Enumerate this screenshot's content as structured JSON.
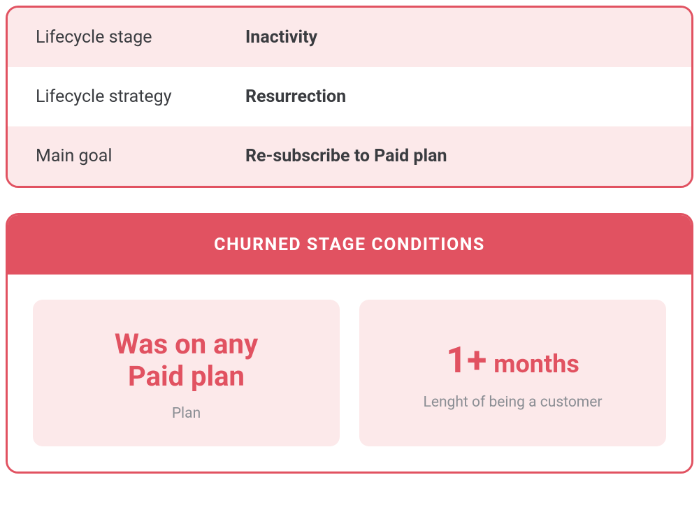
{
  "colors": {
    "accent": "#e15261",
    "tint": "#fce9ea",
    "text_dark": "#3a3c40",
    "muted": "#8b8e94"
  },
  "summary": {
    "rows": [
      {
        "label": "Lifecycle stage",
        "value": "Inactivity",
        "tint": true
      },
      {
        "label": "Lifecycle strategy",
        "value": "Resurrection",
        "tint": false
      },
      {
        "label": "Main goal",
        "value": "Re-subscribe to Paid plan",
        "tint": true
      }
    ]
  },
  "conditions": {
    "header": "CHURNED STAGE CONDITIONS",
    "tiles": [
      {
        "title_html": "Was on any<br>Paid plan",
        "subtitle": "Plan"
      },
      {
        "title_html": "<span class=\"big\">1+</span> <span class=\"rest\">months</span>",
        "subtitle": "Lenght of being a customer"
      }
    ]
  }
}
